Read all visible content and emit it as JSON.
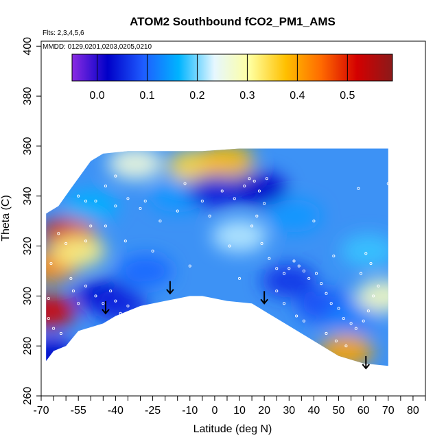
{
  "chart_data": {
    "type": "heatmap",
    "title": "ATOM2 Southbound fCO2_PM1_AMS",
    "subtitle_flights": "Flts: 2,3,4,5,6",
    "subtitle_dates": "MMDD: 0129,0201,0203,0205,0210",
    "xlabel": "Latitude (deg N)",
    "ylabel": "Theta (C)",
    "xlim": [
      -70,
      85
    ],
    "ylim": [
      260,
      402
    ],
    "x_ticks": [
      -70,
      -55,
      -40,
      -25,
      -10,
      0,
      10,
      20,
      30,
      40,
      50,
      60,
      70,
      80
    ],
    "y_ticks": [
      260,
      280,
      300,
      320,
      340,
      360,
      380,
      400
    ],
    "grid": false,
    "legend": "colorbar-top",
    "colorbar": {
      "range": [
        -0.05,
        0.59
      ],
      "ticks": [
        0.0,
        0.1,
        0.2,
        0.3,
        0.4,
        0.5
      ],
      "tick_labels": [
        "0.0",
        "0.1",
        "0.2",
        "0.3",
        "0.4",
        "0.5"
      ],
      "colors": [
        "#8a2be2",
        "#0000c8",
        "#1e5cff",
        "#00b4ff",
        "#e6f7ff",
        "#ffff9e",
        "#ffc000",
        "#ff6a00",
        "#d40000",
        "#8b1a1a"
      ]
    },
    "field_boundary": {
      "lower": [
        [
          -68,
          274
        ],
        [
          -65,
          278
        ],
        [
          -60,
          280
        ],
        [
          -55,
          286
        ],
        [
          -45,
          289
        ],
        [
          -40,
          292
        ],
        [
          -30,
          296
        ],
        [
          -20,
          298
        ],
        [
          -10,
          300
        ],
        [
          -5,
          300
        ],
        [
          5,
          298
        ],
        [
          15,
          297
        ],
        [
          20,
          294
        ],
        [
          30,
          288
        ],
        [
          40,
          282
        ],
        [
          50,
          276
        ],
        [
          60,
          273
        ],
        [
          70,
          272
        ]
      ],
      "upper": [
        [
          -68,
          333
        ],
        [
          -63,
          336
        ],
        [
          -58,
          343
        ],
        [
          -50,
          354
        ],
        [
          -45,
          357
        ],
        [
          -35,
          358
        ],
        [
          -20,
          358
        ],
        [
          -5,
          358
        ],
        [
          10,
          359
        ],
        [
          30,
          359
        ],
        [
          50,
          359
        ],
        [
          70,
          359
        ]
      ]
    },
    "field_blobs": [
      {
        "lat": -66,
        "theta": 312,
        "value": 0.42
      },
      {
        "lat": -67,
        "theta": 294,
        "value": 0.52
      },
      {
        "lat": -59,
        "theta": 325,
        "value": 0.5
      },
      {
        "lat": -55,
        "theta": 318,
        "value": 0.32
      },
      {
        "lat": -45,
        "theta": 300,
        "value": 0.03
      },
      {
        "lat": -38,
        "theta": 296,
        "value": 0.05
      },
      {
        "lat": -28,
        "theta": 310,
        "value": 0.1
      },
      {
        "lat": -15,
        "theta": 340,
        "value": 0.14
      },
      {
        "lat": -32,
        "theta": 353,
        "value": 0.26
      },
      {
        "lat": -8,
        "theta": 352,
        "value": 0.35
      },
      {
        "lat": 5,
        "theta": 354,
        "value": 0.38
      },
      {
        "lat": 0,
        "theta": 342,
        "value": 0.04
      },
      {
        "lat": 10,
        "theta": 324,
        "value": 0.22
      },
      {
        "lat": 18,
        "theta": 343,
        "value": 0.02
      },
      {
        "lat": 32,
        "theta": 332,
        "value": 0.14
      },
      {
        "lat": 30,
        "theta": 306,
        "value": 0.06
      },
      {
        "lat": 44,
        "theta": 296,
        "value": 0.08
      },
      {
        "lat": 56,
        "theta": 292,
        "value": 0.12
      },
      {
        "lat": 62,
        "theta": 318,
        "value": 0.18
      },
      {
        "lat": 53,
        "theta": 278,
        "value": 0.4
      },
      {
        "lat": -66,
        "theta": 276,
        "value": 0.02
      },
      {
        "lat": -50,
        "theta": 336,
        "value": 0.16
      },
      {
        "lat": 68,
        "theta": 300,
        "value": 0.28
      }
    ],
    "arrows": [
      {
        "lat": -44,
        "theta": 293
      },
      {
        "lat": -18,
        "theta": 301
      },
      {
        "lat": 20,
        "theta": 297
      },
      {
        "lat": 61,
        "theta": 271
      }
    ],
    "sample_points": [
      [
        -65,
        287
      ],
      [
        -62,
        285
      ],
      [
        -55,
        340
      ],
      [
        -52,
        338
      ],
      [
        -48,
        300
      ],
      [
        -45,
        297
      ],
      [
        -42,
        302
      ],
      [
        -40,
        298
      ],
      [
        -38,
        293
      ],
      [
        -35,
        296
      ],
      [
        -50,
        328
      ],
      [
        -52,
        322
      ],
      [
        -48,
        338
      ],
      [
        -44,
        344
      ],
      [
        -40,
        348
      ],
      [
        -35,
        339
      ],
      [
        -30,
        335
      ],
      [
        -28,
        338
      ],
      [
        -22,
        330
      ],
      [
        -15,
        334
      ],
      [
        -10,
        312
      ],
      [
        -5,
        338
      ],
      [
        -2,
        332
      ],
      [
        3,
        342
      ],
      [
        8,
        339
      ],
      [
        12,
        344
      ],
      [
        14,
        347
      ],
      [
        16,
        346
      ],
      [
        18,
        342
      ],
      [
        20,
        337
      ],
      [
        17,
        332
      ],
      [
        15,
        328
      ],
      [
        19,
        321
      ],
      [
        22,
        315
      ],
      [
        25,
        311
      ],
      [
        28,
        309
      ],
      [
        30,
        311
      ],
      [
        32,
        314
      ],
      [
        34,
        312
      ],
      [
        36,
        310
      ],
      [
        38,
        307
      ],
      [
        41,
        309
      ],
      [
        43,
        305
      ],
      [
        45,
        301
      ],
      [
        47,
        297
      ],
      [
        50,
        295
      ],
      [
        52,
        291
      ],
      [
        55,
        289
      ],
      [
        57,
        287
      ],
      [
        60,
        290
      ],
      [
        62,
        294
      ],
      [
        64,
        300
      ],
      [
        66,
        304
      ],
      [
        63,
        313
      ],
      [
        61,
        317
      ],
      [
        59,
        309
      ],
      [
        45,
        285
      ],
      [
        49,
        282
      ],
      [
        53,
        280
      ],
      [
        36,
        290
      ],
      [
        33,
        292
      ],
      [
        28,
        297
      ],
      [
        25,
        302
      ],
      [
        -58,
        307
      ],
      [
        -57,
        302
      ],
      [
        -60,
        321
      ],
      [
        -63,
        325
      ],
      [
        -66,
        313
      ],
      [
        -67,
        299
      ],
      [
        -67,
        291
      ],
      [
        -55,
        297
      ],
      [
        -52,
        304
      ],
      [
        -40,
        336
      ],
      [
        -44,
        328
      ],
      [
        -36,
        322
      ],
      [
        -25,
        318
      ],
      [
        -12,
        345
      ],
      [
        6,
        320
      ],
      [
        10,
        307
      ],
      [
        40,
        330
      ],
      [
        48,
        316
      ],
      [
        70,
        345
      ],
      [
        58,
        343
      ],
      [
        21,
        347
      ]
    ]
  }
}
